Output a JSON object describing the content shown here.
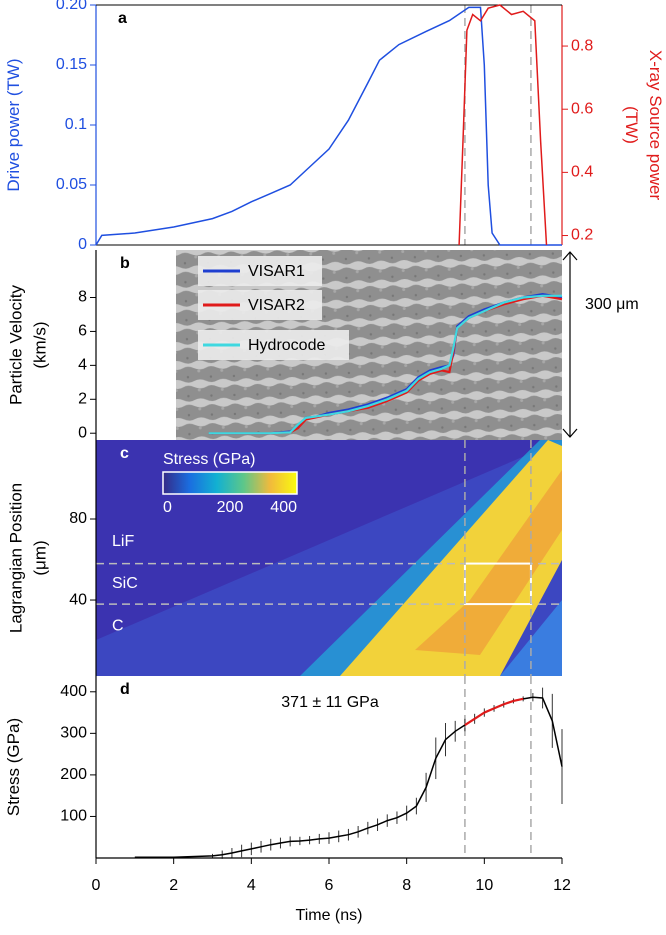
{
  "chart_data": [
    {
      "type": "line",
      "panel": "a",
      "xlim": [
        0,
        12
      ],
      "ylim": [
        0,
        0.2
      ],
      "yticks": [
        0,
        0.05,
        0.1,
        0.15,
        {
          "value": 0.2,
          "label": "0.20"
        }
      ],
      "y2lim": [
        0.17,
        0.93
      ],
      "y2ticks": [
        0.2,
        0.4,
        0.6,
        0.8
      ],
      "ylabel": "Drive power (TW)",
      "y2label": "X-ray Source power (TW)",
      "ylabel_color": "#1f4fe0",
      "y2label_color": "#e01b1b",
      "vlines": [
        9.5,
        11.2
      ],
      "series": [
        {
          "color": "#1f4fe0",
          "x": [
            0,
            0.15,
            1,
            2,
            3,
            3.5,
            4,
            4.5,
            5,
            5.5,
            6,
            6.5,
            7,
            7.3,
            7.8,
            8.5,
            9.1,
            9.6,
            9.9,
            10.0,
            10.1,
            10.2,
            10.4,
            12
          ],
          "values": [
            0,
            0.008,
            0.01,
            0.015,
            0.022,
            0.028,
            0.036,
            0.043,
            0.05,
            0.065,
            0.08,
            0.104,
            0.135,
            0.154,
            0.167,
            0.178,
            0.187,
            0.198,
            0.198,
            0.15,
            0.05,
            0.01,
            0,
            0
          ]
        },
        {
          "color": "#e01b1b",
          "axis": "y2",
          "x": [
            9.35,
            9.45,
            9.55,
            9.7,
            9.9,
            10.1,
            10.4,
            10.7,
            11.0,
            11.3,
            11.45,
            11.6
          ],
          "values": [
            0.17,
            0.5,
            0.85,
            0.9,
            0.88,
            0.92,
            0.93,
            0.9,
            0.91,
            0.88,
            0.5,
            0.17
          ]
        }
      ]
    },
    {
      "type": "line",
      "panel": "b",
      "xlim": [
        0,
        12
      ],
      "ylim": [
        -0.4,
        10.8
      ],
      "yticks": [
        0,
        2,
        4,
        6,
        8
      ],
      "ylabel": "Particle Velocity (km/s)",
      "annotation": "300 μm",
      "legend": "upper left",
      "x": [
        2.9,
        3.5,
        4,
        4.5,
        5,
        5.2,
        5.4,
        5.7,
        6,
        6.5,
        7,
        7.5,
        8,
        8.3,
        8.6,
        8.9,
        9.1,
        9.2,
        9.3,
        9.6,
        10,
        10.5,
        11,
        11.5,
        12
      ],
      "series": [
        {
          "name": "VISAR1",
          "color": "#1f3fd0",
          "values": [
            0,
            0,
            0,
            0,
            0.1,
            0.4,
            0.9,
            1.0,
            1.2,
            1.4,
            1.7,
            2.1,
            2.6,
            3.3,
            3.7,
            3.9,
            4.0,
            4.6,
            6.3,
            6.9,
            7.3,
            7.7,
            8.0,
            8.2,
            8.0
          ]
        },
        {
          "name": "VISAR2",
          "color": "#e01b1b",
          "values": [
            0,
            0,
            0,
            0,
            0.05,
            0.3,
            0.8,
            0.95,
            1.1,
            1.3,
            1.5,
            1.9,
            2.4,
            3.1,
            3.5,
            3.7,
            3.6,
            4.8,
            6.2,
            6.8,
            7.2,
            7.6,
            7.9,
            8.1,
            7.9
          ]
        },
        {
          "name": "Hydrocode",
          "color": "#3fd8e0",
          "values": [
            0,
            0,
            0,
            0,
            0.05,
            0.5,
            0.9,
            1.0,
            1.1,
            1.3,
            1.6,
            2.0,
            2.5,
            3.2,
            3.6,
            3.8,
            4.0,
            5.0,
            6.2,
            6.8,
            7.2,
            7.7,
            8.0,
            8.1,
            8.1
          ]
        }
      ]
    },
    {
      "type": "heatmap",
      "panel": "c",
      "xlim": [
        0,
        12
      ],
      "ylim": [
        2.5,
        119
      ],
      "yticks": [
        40,
        80
      ],
      "ylabel": "Lagrangian Position (μm)",
      "colorbar": {
        "label": "Stress (GPa)",
        "lim": [
          0,
          400
        ],
        "ticks": [
          0,
          200,
          400
        ]
      },
      "layers": [
        "LiF",
        "SiC",
        "C"
      ],
      "hlines": [
        58,
        38
      ],
      "vlines": [
        9.5,
        11.2
      ],
      "box": {
        "x": [
          9.5,
          11.2
        ],
        "y": [
          38,
          58
        ]
      }
    },
    {
      "type": "errorbar",
      "panel": "d",
      "xlim": [
        0,
        12
      ],
      "xticks": [
        0,
        2,
        4,
        6,
        8,
        10,
        12
      ],
      "ylim": [
        0,
        438
      ],
      "yticks": [
        100,
        200,
        300,
        400
      ],
      "xlabel": "Time (ns)",
      "ylabel": "Stress (GPa)",
      "annotation": "371 ± 11 GPa",
      "vlines": [
        9.5,
        11.2
      ],
      "color": "#000000",
      "highlight": [
        9.5,
        11.2
      ],
      "highlight_color": "#e01b1b",
      "x": [
        1,
        2,
        3,
        3.25,
        3.5,
        3.75,
        4,
        4.25,
        4.5,
        4.75,
        5,
        5.25,
        5.5,
        5.75,
        6,
        6.25,
        6.5,
        6.75,
        7,
        7.25,
        7.5,
        7.75,
        8,
        8.25,
        8.5,
        8.75,
        9,
        9.25,
        9.5,
        9.75,
        10,
        10.25,
        10.5,
        10.75,
        11,
        11.25,
        11.5,
        11.75,
        12
      ],
      "values": [
        2,
        2,
        5,
        8,
        12,
        17,
        22,
        27,
        32,
        36,
        40,
        41,
        43,
        46,
        48,
        52,
        56,
        63,
        72,
        80,
        90,
        97,
        108,
        125,
        170,
        240,
        285,
        305,
        320,
        335,
        350,
        360,
        370,
        378,
        383,
        387,
        385,
        330,
        220
      ],
      "errors": [
        0,
        0,
        5,
        10,
        12,
        15,
        15,
        14,
        14,
        13,
        12,
        10,
        10,
        12,
        14,
        14,
        14,
        14,
        15,
        15,
        15,
        15,
        18,
        20,
        35,
        50,
        40,
        25,
        15,
        12,
        10,
        8,
        8,
        6,
        6,
        10,
        25,
        65,
        90
      ]
    }
  ]
}
